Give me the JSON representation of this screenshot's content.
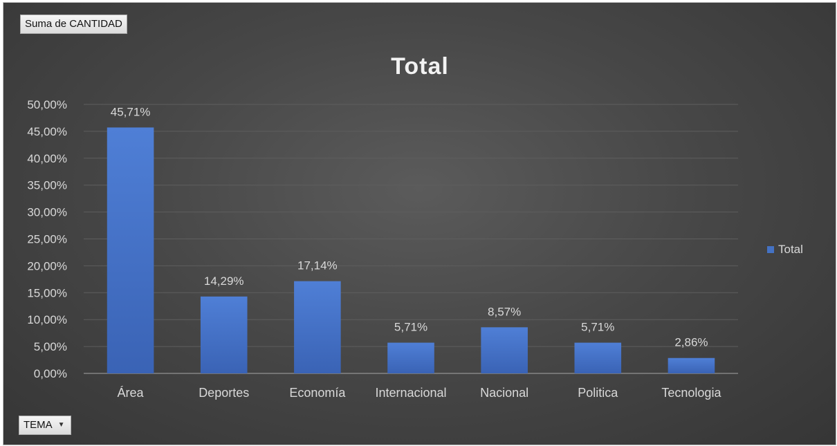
{
  "pivot": {
    "field_button_label": "Suma de CANTIDAD",
    "filter_button_label": "TEMA",
    "filter_icon": "chevron-down-icon"
  },
  "chart_data": {
    "type": "bar",
    "title": "Total",
    "categories": [
      "Área",
      "Deportes",
      "Economía",
      "Internacional",
      "Nacional",
      "Politica",
      "Tecnologia"
    ],
    "series": [
      {
        "name": "Total",
        "color": "#4472c4",
        "values": [
          45.71,
          14.29,
          17.14,
          5.71,
          8.57,
          5.71,
          2.86
        ],
        "labels": [
          "45,71%",
          "14,29%",
          "17,14%",
          "5,71%",
          "8,57%",
          "5,71%",
          "2,86%"
        ]
      }
    ],
    "ylim": [
      0,
      50
    ],
    "yticks": [
      0,
      5,
      10,
      15,
      20,
      25,
      30,
      35,
      40,
      45,
      50
    ],
    "ytick_labels": [
      "0,00%",
      "5,00%",
      "10,00%",
      "15,00%",
      "20,00%",
      "25,00%",
      "30,00%",
      "35,00%",
      "40,00%",
      "45,00%",
      "50,00%"
    ],
    "grid": true,
    "legend": "right",
    "xlabel": "",
    "ylabel": ""
  }
}
